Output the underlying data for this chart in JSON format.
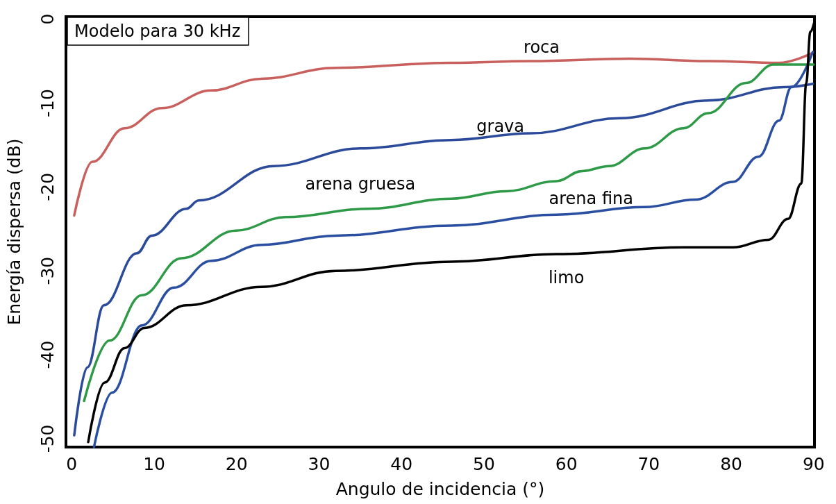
{
  "chart_data": {
    "type": "line",
    "title": "Modelo para 30 kHz",
    "xlabel": "Angulo de incidencia (°)",
    "ylabel": "Energía dispersa (dB)",
    "xlim": [
      -0.7,
      90.1
    ],
    "xticks": [
      0,
      10,
      20,
      30,
      40,
      50,
      60,
      70,
      80,
      90
    ],
    "ylim": [
      -51,
      0.3
    ],
    "yticks": [
      0,
      -10,
      -20,
      -30,
      -40,
      -50
    ],
    "legend": false,
    "marker": "none",
    "line_style": "solid",
    "series": [
      {
        "name": "roca",
        "color": "#c8605e",
        "x": [
          0.3,
          2.5,
          6.4,
          10.9,
          16.9,
          23,
          32,
          46,
          55.7,
          67.7,
          77.2,
          85.8,
          89.7
        ],
        "values": [
          -23.4,
          -17.0,
          -13.0,
          -10.6,
          -8.5,
          -7.1,
          -5.8,
          -5.2,
          -5.0,
          -4.7,
          -5.0,
          -5.2,
          -4.1
        ]
      },
      {
        "name": "grava",
        "color": "#2b4a9a",
        "x": [
          0.3,
          1.9,
          3.9,
          7.9,
          9.7,
          13.9,
          15.4,
          24.5,
          35,
          46,
          55.7,
          66.5,
          77.2,
          86.4,
          89.9
        ],
        "values": [
          -49.6,
          -41.5,
          -34.1,
          -27.9,
          -25.8,
          -22.6,
          -21.6,
          -17.5,
          -15.4,
          -14.4,
          -13.6,
          -11.8,
          -9.7,
          -8.1,
          -7.7
        ]
      },
      {
        "name": "arena gruesa",
        "color": "#2e9a48",
        "x": [
          1.5,
          4.6,
          8.5,
          13.3,
          19.9,
          25.9,
          35.9,
          46,
          52.7,
          58.8,
          61.9,
          65.2,
          69.5,
          74.2,
          77.2,
          81.8,
          85.1,
          90
        ],
        "values": [
          -45.5,
          -38.3,
          -32.9,
          -28.5,
          -25.2,
          -23.6,
          -22.6,
          -21.4,
          -20.5,
          -19.3,
          -18.1,
          -17.5,
          -15.4,
          -13.0,
          -11.2,
          -7.6,
          -5.4,
          -5.4
        ]
      },
      {
        "name": "arena fina",
        "color": "#2b4fa0",
        "x": [
          2.7,
          4.9,
          8.5,
          12.4,
          16.9,
          23,
          32,
          46,
          58.8,
          69.5,
          75.7,
          80.2,
          83.3,
          85.8,
          87.3,
          89.9
        ],
        "values": [
          -51.0,
          -44.5,
          -36.5,
          -32.0,
          -28.8,
          -26.9,
          -25.8,
          -24.6,
          -23.3,
          -22.4,
          -21.5,
          -19.4,
          -16.4,
          -12.1,
          -8.1,
          -3.9
        ]
      },
      {
        "name": "limo",
        "color": "#000000",
        "x": [
          2.0,
          4.0,
          6.4,
          8.8,
          13.9,
          23,
          32,
          46,
          58.8,
          74.2,
          80.2,
          84.5,
          86.9,
          88.5,
          89.1,
          89.6,
          90.1
        ],
        "values": [
          -50.4,
          -43.3,
          -39.2,
          -36.8,
          -34.1,
          -31.9,
          -30.0,
          -28.9,
          -28.0,
          -27.2,
          -27.2,
          -26.3,
          -23.8,
          -19.6,
          -7.6,
          -1.5,
          -0.3
        ]
      }
    ]
  }
}
